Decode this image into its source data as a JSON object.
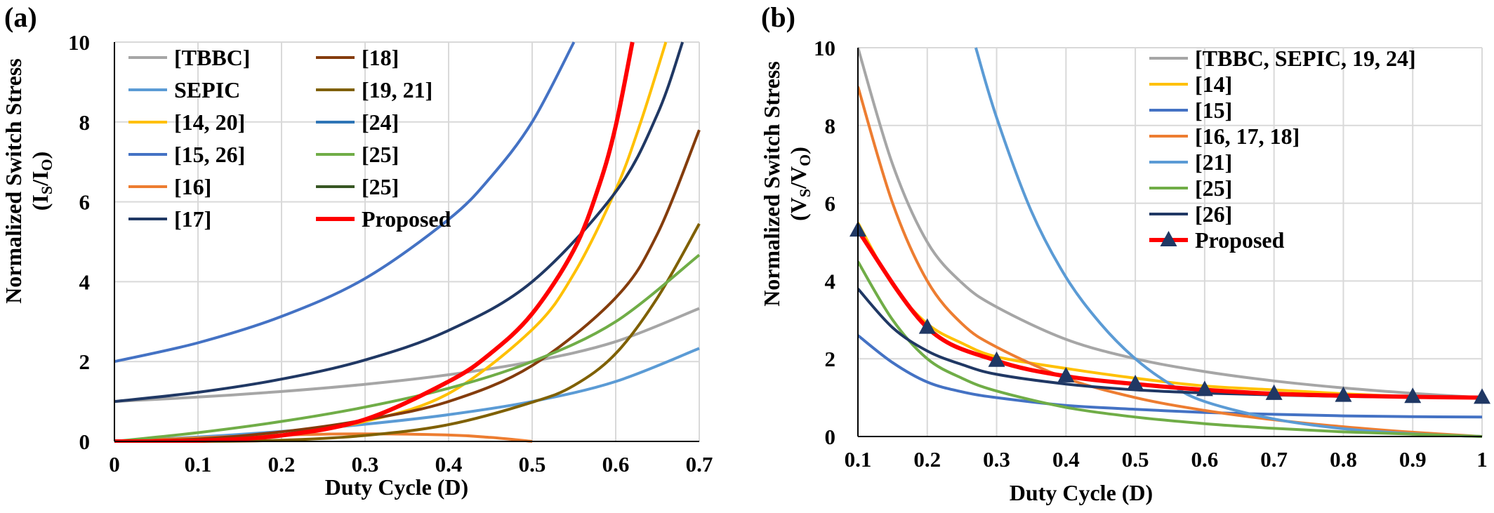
{
  "chart_data": [
    {
      "panel_label": "(a)",
      "type": "line",
      "ylabel_main": "Normalized Switch Stress",
      "ylabel_sub": "I",
      "ylabel_sub2": "I",
      "ylabel_sub_s": "S",
      "ylabel_sub2_s": "O",
      "xlabel": "Duty Cycle (D)",
      "xlim": [
        0,
        0.7
      ],
      "ylim": [
        0,
        10
      ],
      "x_ticks": [
        "0",
        "0.1",
        "0.2",
        "0.3",
        "0.4",
        "0.5",
        "0.6",
        "0.7"
      ],
      "y_ticks": [
        "0",
        "2",
        "4",
        "6",
        "8",
        "10"
      ],
      "grid": true,
      "legend_position": "top-left",
      "series": [
        {
          "name": "[TBBC]",
          "color": "#a6a6a6",
          "x": [
            0,
            0.1,
            0.2,
            0.3,
            0.4,
            0.5,
            0.6,
            0.7
          ],
          "values": [
            1,
            1.11,
            1.25,
            1.43,
            1.67,
            2.0,
            2.5,
            3.33
          ]
        },
        {
          "name": "SEPIC",
          "color": "#5b9bd5",
          "x": [
            0,
            0.1,
            0.2,
            0.3,
            0.4,
            0.5,
            0.6,
            0.7
          ],
          "values": [
            0,
            0.11,
            0.25,
            0.43,
            0.67,
            1.0,
            1.5,
            2.33
          ]
        },
        {
          "name": "[14, 20]",
          "color": "#ffc000",
          "x": [
            0,
            0.1,
            0.2,
            0.3,
            0.4,
            0.5,
            0.55,
            0.6,
            0.63,
            0.66
          ],
          "values": [
            0,
            0.02,
            0.16,
            0.5,
            1.2,
            2.8,
            4.2,
            6.3,
            8.0,
            10.0
          ]
        },
        {
          "name": "[15, 26]",
          "color": "#4472c4",
          "x": [
            0,
            0.1,
            0.2,
            0.3,
            0.4,
            0.45,
            0.5,
            0.55
          ],
          "values": [
            2,
            2.47,
            3.13,
            4.08,
            5.56,
            6.61,
            8.0,
            10.0
          ]
        },
        {
          "name": "[16]",
          "color": "#ed7d31",
          "x": [
            0,
            0.1,
            0.2,
            0.3,
            0.4,
            0.45,
            0.5
          ],
          "values": [
            0,
            0.09,
            0.16,
            0.19,
            0.16,
            0.1,
            0
          ]
        },
        {
          "name": "[17]",
          "color": "#203864",
          "x": [
            0,
            0.1,
            0.2,
            0.3,
            0.4,
            0.5,
            0.6,
            0.65,
            0.68
          ],
          "values": [
            1,
            1.23,
            1.56,
            2.04,
            2.78,
            4.0,
            6.25,
            8.2,
            10.0
          ]
        },
        {
          "name": "[18]",
          "color": "#843c0c",
          "x": [
            0,
            0.1,
            0.2,
            0.3,
            0.4,
            0.5,
            0.6,
            0.65,
            0.7
          ],
          "values": [
            0,
            0.06,
            0.24,
            0.54,
            1.0,
            1.9,
            3.6,
            5.2,
            7.8
          ]
        },
        {
          "name": "[19, 21]",
          "color": "#7f6000",
          "x": [
            0,
            0.1,
            0.2,
            0.3,
            0.4,
            0.5,
            0.55,
            0.6,
            0.65,
            0.7
          ],
          "values": [
            0,
            0,
            0.03,
            0.15,
            0.42,
            0.98,
            1.4,
            2.2,
            3.6,
            5.45
          ]
        },
        {
          "name": "[24]",
          "color": "#2e75b6",
          "x": [],
          "values": []
        },
        {
          "name": "[25]",
          "color": "#70ad47",
          "x": [
            0,
            0.1,
            0.2,
            0.3,
            0.4,
            0.5,
            0.6,
            0.7
          ],
          "values": [
            0,
            0.22,
            0.5,
            0.86,
            1.33,
            2.0,
            3.0,
            4.67
          ]
        },
        {
          "name": "[25]",
          "color": "#375623",
          "x": [],
          "values": []
        },
        {
          "name": "Proposed",
          "color": "#ff0000",
          "x": [
            0,
            0.1,
            0.2,
            0.3,
            0.4,
            0.45,
            0.5,
            0.55,
            0.58,
            0.6,
            0.62
          ],
          "values": [
            0,
            0.02,
            0.15,
            0.55,
            1.5,
            2.2,
            3.2,
            4.8,
            6.4,
            7.9,
            10.0
          ]
        }
      ]
    },
    {
      "panel_label": "(b)",
      "type": "line",
      "ylabel_main": "Normalized Switch Stress",
      "ylabel_sub": "V",
      "ylabel_sub2": "V",
      "ylabel_sub_s": "S",
      "ylabel_sub2_s": "O",
      "xlabel": "Duty Cycle (D)",
      "xlim": [
        0.1,
        1
      ],
      "ylim": [
        0,
        10
      ],
      "x_ticks": [
        "0.1",
        "0.2",
        "0.3",
        "0.4",
        "0.5",
        "0.6",
        "0.7",
        "0.8",
        "0.9",
        "1"
      ],
      "y_ticks": [
        "0",
        "2",
        "4",
        "6",
        "8",
        "10"
      ],
      "grid": true,
      "legend_position": "top-right",
      "series": [
        {
          "name": "[TBBC, SEPIC, 19, 24]",
          "color": "#a6a6a6",
          "marker": false,
          "x": [
            0.1,
            0.15,
            0.2,
            0.25,
            0.3,
            0.4,
            0.5,
            0.6,
            0.7,
            0.8,
            0.9,
            1
          ],
          "values": [
            10,
            7.0,
            5.0,
            3.95,
            3.33,
            2.5,
            2.0,
            1.67,
            1.43,
            1.25,
            1.11,
            1.0
          ]
        },
        {
          "name": "[14]",
          "color": "#ffc000",
          "marker": false,
          "x": [
            0.1,
            0.15,
            0.2,
            0.25,
            0.3,
            0.4,
            0.5,
            0.6,
            0.7,
            0.8,
            0.9,
            1
          ],
          "values": [
            5.5,
            3.9,
            2.9,
            2.4,
            2.05,
            1.75,
            1.5,
            1.3,
            1.2,
            1.1,
            1.03,
            1.0
          ]
        },
        {
          "name": "[15]",
          "color": "#4472c4",
          "marker": false,
          "x": [
            0.1,
            0.15,
            0.2,
            0.25,
            0.3,
            0.4,
            0.5,
            0.6,
            0.7,
            0.8,
            0.9,
            1
          ],
          "values": [
            2.6,
            1.9,
            1.4,
            1.15,
            1.0,
            0.8,
            0.7,
            0.62,
            0.57,
            0.53,
            0.51,
            0.5
          ]
        },
        {
          "name": "[16, 17, 18]",
          "color": "#ed7d31",
          "marker": false,
          "x": [
            0.1,
            0.15,
            0.2,
            0.25,
            0.3,
            0.4,
            0.5,
            0.6,
            0.7,
            0.8,
            0.9,
            1
          ],
          "values": [
            9.0,
            6.0,
            4.0,
            2.9,
            2.3,
            1.5,
            1.0,
            0.67,
            0.43,
            0.25,
            0.11,
            0
          ]
        },
        {
          "name": "[21]",
          "color": "#5b9bd5",
          "marker": false,
          "x": [
            0.27,
            0.3,
            0.35,
            0.4,
            0.45,
            0.5,
            0.55,
            0.6,
            0.7,
            0.8,
            0.9,
            1
          ],
          "values": [
            10,
            8.2,
            5.8,
            4.1,
            2.9,
            2.0,
            1.35,
            0.9,
            0.45,
            0.2,
            0.07,
            0
          ]
        },
        {
          "name": "[25]",
          "color": "#70ad47",
          "marker": false,
          "x": [
            0.1,
            0.15,
            0.2,
            0.25,
            0.3,
            0.4,
            0.5,
            0.6,
            0.7,
            0.8,
            0.9,
            1
          ],
          "values": [
            4.5,
            3.0,
            2.0,
            1.5,
            1.17,
            0.75,
            0.5,
            0.33,
            0.21,
            0.12,
            0.06,
            0
          ]
        },
        {
          "name": "[26]",
          "color": "#203864",
          "marker": false,
          "x": [
            0.1,
            0.15,
            0.2,
            0.25,
            0.3,
            0.4,
            0.5,
            0.6,
            0.7,
            0.8,
            0.9,
            1
          ],
          "values": [
            3.8,
            2.8,
            2.2,
            1.85,
            1.6,
            1.35,
            1.2,
            1.12,
            1.07,
            1.03,
            1.01,
            1.0
          ]
        },
        {
          "name": "Proposed",
          "color": "#ff0000",
          "marker": true,
          "marker_color": "#203864",
          "x": [
            0.1,
            0.2,
            0.3,
            0.4,
            0.5,
            0.6,
            0.7,
            0.8,
            0.9,
            1
          ],
          "values": [
            5.3,
            2.8,
            1.95,
            1.55,
            1.35,
            1.2,
            1.1,
            1.05,
            1.02,
            1.0
          ]
        }
      ]
    }
  ]
}
